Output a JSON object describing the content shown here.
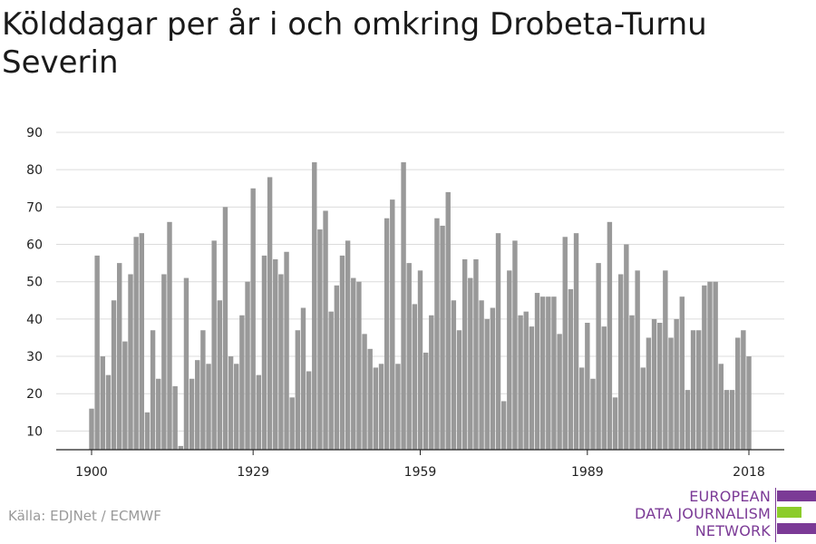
{
  "title": "Kölddagar per år i och omkring Drobeta-Turnu Severin",
  "source": "Källa: EDJNet / ECMWF",
  "logo": {
    "lines": [
      "EUROPEAN",
      "DATA JOURNALISM",
      "NETWORK"
    ],
    "colors": {
      "purple": "#7b3a96",
      "green": "#8ccc2a"
    }
  },
  "chart_data": {
    "type": "bar",
    "title": "Kölddagar per år i och omkring Drobeta-Turnu Severin",
    "xlabel": "",
    "ylabel": "",
    "x_start": 1900,
    "x_end": 2018,
    "x_tick_labels": [
      "1900",
      "1929",
      "1959",
      "1989",
      "2018"
    ],
    "y_ticks": [
      10,
      20,
      30,
      40,
      50,
      60,
      70,
      80,
      90
    ],
    "ylim": [
      5,
      90
    ],
    "grid": true,
    "bar_color": "#999999",
    "values": [
      16,
      57,
      30,
      25,
      45,
      55,
      34,
      52,
      62,
      63,
      15,
      37,
      24,
      52,
      66,
      22,
      6,
      51,
      24,
      29,
      37,
      28,
      61,
      45,
      70,
      30,
      28,
      41,
      50,
      75,
      25,
      57,
      78,
      56,
      52,
      58,
      19,
      37,
      43,
      26,
      82,
      64,
      69,
      42,
      49,
      57,
      61,
      51,
      50,
      36,
      32,
      27,
      28,
      67,
      72,
      28,
      82,
      55,
      44,
      53,
      31,
      41,
      67,
      65,
      74,
      45,
      37,
      56,
      51,
      56,
      45,
      40,
      43,
      63,
      18,
      53,
      61,
      41,
      42,
      38,
      47,
      46,
      46,
      46,
      36,
      62,
      48,
      63,
      27,
      39,
      24,
      55,
      38,
      66,
      19,
      52,
      60,
      41,
      53,
      27,
      35,
      40,
      39,
      53,
      35,
      40,
      46,
      21,
      37,
      37,
      49,
      50,
      50,
      28,
      21,
      21,
      35,
      37,
      30
    ]
  }
}
